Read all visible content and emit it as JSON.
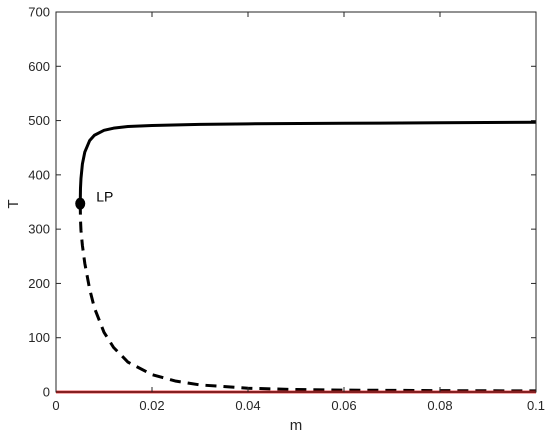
{
  "chart_data": {
    "type": "line",
    "title": "",
    "xlabel": "m",
    "ylabel": "T",
    "xlim": [
      0,
      0.1
    ],
    "ylim": [
      0,
      700
    ],
    "x_ticks": [
      0,
      0.02,
      0.04,
      0.06,
      0.08,
      0.1
    ],
    "x_tick_labels": [
      "0",
      "0.02",
      "0.04",
      "0.06",
      "0.08",
      "0.1"
    ],
    "y_ticks": [
      0,
      100,
      200,
      300,
      400,
      500,
      600,
      700
    ],
    "y_tick_labels": [
      "0",
      "100",
      "200",
      "300",
      "400",
      "500",
      "600",
      "700"
    ],
    "grid": false,
    "series": [
      {
        "style": "solid",
        "color": "#000000",
        "x": [
          0.00505,
          0.0051,
          0.0052,
          0.0055,
          0.006,
          0.007,
          0.008,
          0.01,
          0.012,
          0.015,
          0.02,
          0.03,
          0.04,
          0.06,
          0.08,
          0.1
        ],
        "y": [
          347,
          375,
          393,
          420,
          442,
          463,
          473,
          482,
          486,
          489,
          491,
          493,
          494,
          495,
          496,
          497
        ]
      },
      {
        "style": "dashed",
        "color": "#000000",
        "x": [
          0.00505,
          0.0051,
          0.0052,
          0.0055,
          0.006,
          0.007,
          0.008,
          0.01,
          0.012,
          0.015,
          0.02,
          0.025,
          0.03,
          0.04,
          0.05,
          0.06,
          0.08,
          0.1
        ],
        "y": [
          347,
          318,
          298,
          270,
          237,
          190,
          155,
          110,
          82,
          55,
          32,
          20,
          13,
          7,
          4.5,
          3.5,
          2.5,
          2
        ]
      },
      {
        "style": "solid",
        "color": "#e41a1c",
        "x": [
          0,
          0.1
        ],
        "y": [
          0,
          0
        ]
      }
    ],
    "annotations": [
      {
        "text": "LP",
        "x": 0.00505,
        "y": 347
      }
    ]
  }
}
